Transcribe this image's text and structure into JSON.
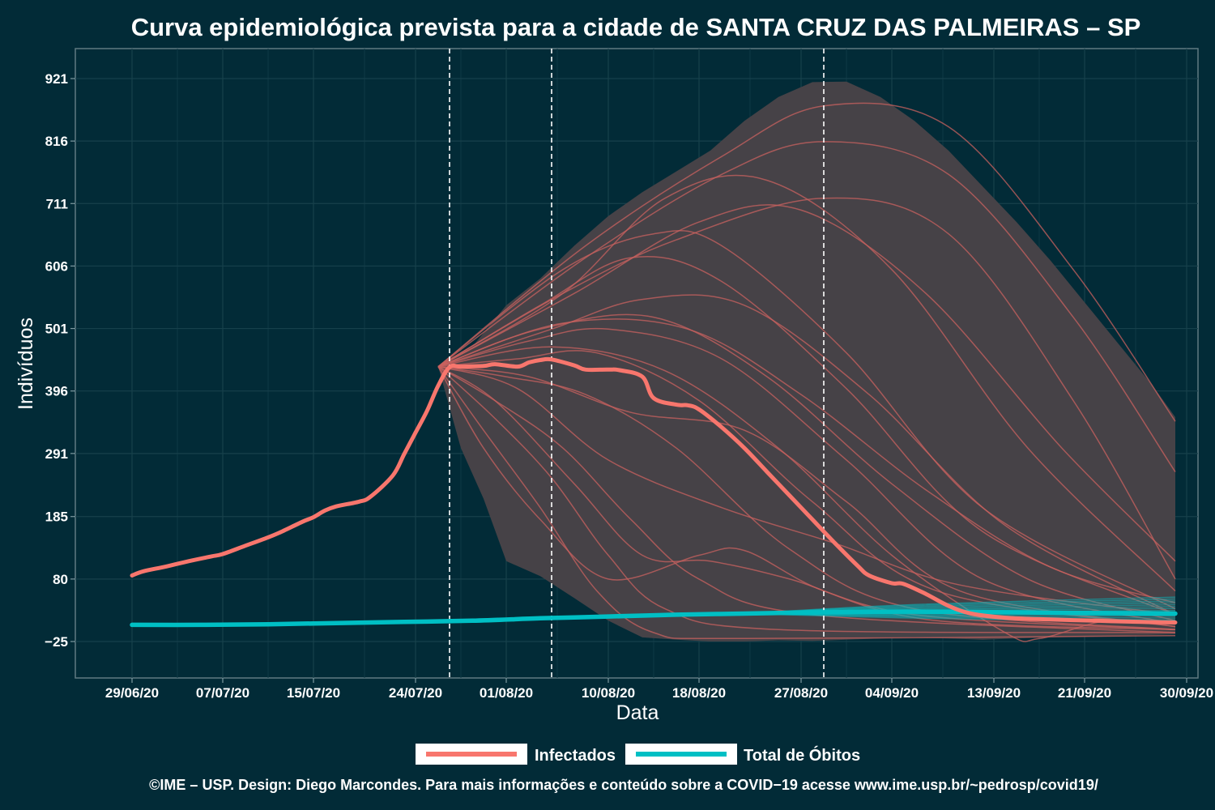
{
  "chart_data": {
    "type": "line",
    "title": "Curva epidemiológica prevista para a cidade de SANTA CRUZ DAS PALMEIRAS – SP",
    "xlabel": "Data",
    "ylabel": "Indivíduos",
    "caption": "©IME – USP. Design: Diego Marcondes. Para mais informações e conteúdo sobre a COVID−19 acesse www.ime.usp.br/~pedrosp/covid19/",
    "x_domain": [
      "2020-06-24",
      "2020-10-01"
    ],
    "ylim": [
      -25,
      921
    ],
    "x_ticks": [
      {
        "date": "2020-06-29",
        "label": "29/06/20"
      },
      {
        "date": "2020-07-07",
        "label": "07/07/20"
      },
      {
        "date": "2020-07-15",
        "label": "15/07/20"
      },
      {
        "date": "2020-07-24",
        "label": "24/07/20"
      },
      {
        "date": "2020-08-01",
        "label": "01/08/20"
      },
      {
        "date": "2020-08-10",
        "label": "10/08/20"
      },
      {
        "date": "2020-08-18",
        "label": "18/08/20"
      },
      {
        "date": "2020-08-27",
        "label": "27/08/20"
      },
      {
        "date": "2020-09-04",
        "label": "04/09/20"
      },
      {
        "date": "2020-09-13",
        "label": "13/09/20"
      },
      {
        "date": "2020-09-21",
        "label": "21/09/20"
      },
      {
        "date": "2020-09-30",
        "label": "30/09/20"
      }
    ],
    "y_ticks": [
      {
        "value": -25,
        "label": "−25"
      },
      {
        "value": 80,
        "label": "80"
      },
      {
        "value": 185,
        "label": "185"
      },
      {
        "value": 291,
        "label": "291"
      },
      {
        "value": 396,
        "label": "396"
      },
      {
        "value": 501,
        "label": "501"
      },
      {
        "value": 606,
        "label": "606"
      },
      {
        "value": 711,
        "label": "711"
      },
      {
        "value": 816,
        "label": "816"
      },
      {
        "value": 921,
        "label": "921"
      }
    ],
    "vlines": [
      "2020-07-27",
      "2020-08-05",
      "2020-08-29"
    ],
    "band": {
      "upper": [
        [
          "2020-07-26",
          437
        ],
        [
          "2020-07-29",
          470
        ],
        [
          "2020-08-01",
          540
        ],
        [
          "2020-08-04",
          585
        ],
        [
          "2020-08-07",
          640
        ],
        [
          "2020-08-10",
          690
        ],
        [
          "2020-08-13",
          730
        ],
        [
          "2020-08-16",
          765
        ],
        [
          "2020-08-19",
          800
        ],
        [
          "2020-08-22",
          850
        ],
        [
          "2020-08-25",
          890
        ],
        [
          "2020-08-28",
          915
        ],
        [
          "2020-08-31",
          916
        ],
        [
          "2020-09-03",
          890
        ],
        [
          "2020-09-06",
          850
        ],
        [
          "2020-09-09",
          800
        ],
        [
          "2020-09-12",
          740
        ],
        [
          "2020-09-15",
          680
        ],
        [
          "2020-09-18",
          615
        ],
        [
          "2020-09-21",
          545
        ],
        [
          "2020-09-24",
          475
        ],
        [
          "2020-09-27",
          405
        ],
        [
          "2020-09-29",
          352
        ]
      ],
      "lower": [
        [
          "2020-07-26",
          437
        ],
        [
          "2020-07-28",
          300
        ],
        [
          "2020-07-30",
          215
        ],
        [
          "2020-08-01",
          110
        ],
        [
          "2020-08-04",
          85
        ],
        [
          "2020-08-07",
          48
        ],
        [
          "2020-08-10",
          10
        ],
        [
          "2020-08-13",
          -18
        ],
        [
          "2020-08-16",
          -22
        ],
        [
          "2020-08-19",
          -25
        ],
        [
          "2020-08-22",
          -25
        ],
        [
          "2020-08-25",
          -23
        ],
        [
          "2020-08-28",
          -24
        ],
        [
          "2020-08-31",
          -22
        ],
        [
          "2020-09-03",
          -20
        ],
        [
          "2020-09-06",
          -18
        ],
        [
          "2020-09-09",
          -20
        ],
        [
          "2020-09-12",
          -22
        ],
        [
          "2020-09-15",
          -20
        ],
        [
          "2020-09-18",
          -18
        ],
        [
          "2020-09-21",
          -17
        ],
        [
          "2020-09-24",
          -15
        ],
        [
          "2020-09-27",
          -14
        ],
        [
          "2020-09-29",
          -13
        ]
      ]
    },
    "series": [
      {
        "name": "Infectados",
        "color": "#f8766d",
        "values": [
          [
            "2020-06-29",
            86
          ],
          [
            "2020-06-30",
            93
          ],
          [
            "2020-07-02",
            101
          ],
          [
            "2020-07-04",
            110
          ],
          [
            "2020-07-06",
            118
          ],
          [
            "2020-07-07",
            122
          ],
          [
            "2020-07-09",
            136
          ],
          [
            "2020-07-11",
            150
          ],
          [
            "2020-07-12",
            158
          ],
          [
            "2020-07-14",
            176
          ],
          [
            "2020-07-15",
            184
          ],
          [
            "2020-07-16",
            195
          ],
          [
            "2020-07-17",
            202
          ],
          [
            "2020-07-19",
            210
          ],
          [
            "2020-07-20",
            218
          ],
          [
            "2020-07-22",
            254
          ],
          [
            "2020-07-23",
            290
          ],
          [
            "2020-07-24",
            326
          ],
          [
            "2020-07-25",
            362
          ],
          [
            "2020-07-26",
            405
          ],
          [
            "2020-07-27",
            436
          ],
          [
            "2020-07-28",
            437
          ],
          [
            "2020-07-30",
            438
          ],
          [
            "2020-07-31",
            441
          ],
          [
            "2020-08-02",
            437
          ],
          [
            "2020-08-03",
            444
          ],
          [
            "2020-08-04",
            448
          ],
          [
            "2020-08-05",
            449
          ],
          [
            "2020-08-07",
            439
          ],
          [
            "2020-08-08",
            432
          ],
          [
            "2020-08-10",
            432
          ],
          [
            "2020-08-11",
            431
          ],
          [
            "2020-08-13",
            420
          ],
          [
            "2020-08-14",
            384
          ],
          [
            "2020-08-16",
            373
          ],
          [
            "2020-08-17",
            372
          ],
          [
            "2020-08-18",
            365
          ],
          [
            "2020-08-20",
            335
          ],
          [
            "2020-08-22",
            300
          ],
          [
            "2020-08-24",
            260
          ],
          [
            "2020-08-26",
            220
          ],
          [
            "2020-08-28",
            180
          ],
          [
            "2020-08-30",
            140
          ],
          [
            "2020-09-01",
            102
          ],
          [
            "2020-09-02",
            86
          ],
          [
            "2020-09-04",
            73
          ],
          [
            "2020-09-05",
            72
          ],
          [
            "2020-09-07",
            55
          ],
          [
            "2020-09-09",
            35
          ],
          [
            "2020-09-11",
            22
          ],
          [
            "2020-09-14",
            15
          ],
          [
            "2020-09-18",
            12
          ],
          [
            "2020-09-22",
            10
          ],
          [
            "2020-09-26",
            8
          ],
          [
            "2020-09-29",
            7
          ]
        ]
      },
      {
        "name": "Total de Óbitos",
        "color": "#00bfc4",
        "values": [
          [
            "2020-06-29",
            3
          ],
          [
            "2020-07-05",
            3
          ],
          [
            "2020-07-11",
            4
          ],
          [
            "2020-07-17",
            6
          ],
          [
            "2020-07-23",
            8
          ],
          [
            "2020-07-29",
            10
          ],
          [
            "2020-08-04",
            14
          ],
          [
            "2020-08-10",
            17
          ],
          [
            "2020-08-16",
            20
          ],
          [
            "2020-08-22",
            22
          ],
          [
            "2020-08-28",
            24
          ],
          [
            "2020-09-03",
            25
          ],
          [
            "2020-09-09",
            25
          ],
          [
            "2020-09-15",
            24
          ],
          [
            "2020-09-21",
            23
          ],
          [
            "2020-09-29",
            22
          ]
        ]
      }
    ],
    "scenario_paths": [
      [
        [
          "2020-07-26",
          437
        ],
        [
          "2020-08-06",
          560
        ],
        [
          "2020-08-16",
          650
        ],
        [
          "2020-08-29",
          720
        ],
        [
          "2020-09-09",
          660
        ],
        [
          "2020-09-20",
          380
        ],
        [
          "2020-09-29",
          80
        ]
      ],
      [
        [
          "2020-07-26",
          437
        ],
        [
          "2020-08-08",
          620
        ],
        [
          "2020-08-20",
          760
        ],
        [
          "2020-08-29",
          815
        ],
        [
          "2020-09-09",
          760
        ],
        [
          "2020-09-20",
          520
        ],
        [
          "2020-09-29",
          260
        ]
      ],
      [
        [
          "2020-07-26",
          437
        ],
        [
          "2020-08-08",
          640
        ],
        [
          "2020-08-20",
          790
        ],
        [
          "2020-08-29",
          875
        ],
        [
          "2020-09-09",
          840
        ],
        [
          "2020-09-20",
          600
        ],
        [
          "2020-09-29",
          345
        ]
      ],
      [
        [
          "2020-07-26",
          437
        ],
        [
          "2020-08-06",
          560
        ],
        [
          "2020-08-15",
          720
        ],
        [
          "2020-08-24",
          750
        ],
        [
          "2020-09-04",
          600
        ],
        [
          "2020-09-16",
          300
        ],
        [
          "2020-09-29",
          60
        ]
      ],
      [
        [
          "2020-07-26",
          437
        ],
        [
          "2020-08-06",
          600
        ],
        [
          "2020-08-14",
          660
        ],
        [
          "2020-08-20",
          640
        ],
        [
          "2020-08-31",
          460
        ],
        [
          "2020-09-12",
          200
        ],
        [
          "2020-09-29",
          30
        ]
      ],
      [
        [
          "2020-07-26",
          437
        ],
        [
          "2020-08-04",
          540
        ],
        [
          "2020-08-12",
          620
        ],
        [
          "2020-08-20",
          580
        ],
        [
          "2020-08-31",
          400
        ],
        [
          "2020-09-12",
          160
        ],
        [
          "2020-09-29",
          20
        ]
      ],
      [
        [
          "2020-07-26",
          437
        ],
        [
          "2020-08-05",
          500
        ],
        [
          "2020-08-13",
          550
        ],
        [
          "2020-08-22",
          540
        ],
        [
          "2020-09-02",
          390
        ],
        [
          "2020-09-14",
          170
        ],
        [
          "2020-09-29",
          20
        ]
      ],
      [
        [
          "2020-07-26",
          437
        ],
        [
          "2020-08-03",
          480
        ],
        [
          "2020-08-10",
          500
        ],
        [
          "2020-08-20",
          450
        ],
        [
          "2020-08-31",
          280
        ],
        [
          "2020-09-12",
          80
        ],
        [
          "2020-09-29",
          5
        ]
      ],
      [
        [
          "2020-07-26",
          437
        ],
        [
          "2020-08-02",
          450
        ],
        [
          "2020-08-09",
          460
        ],
        [
          "2020-08-18",
          380
        ],
        [
          "2020-08-28",
          210
        ],
        [
          "2020-09-08",
          60
        ],
        [
          "2020-09-29",
          0
        ]
      ],
      [
        [
          "2020-07-26",
          437
        ],
        [
          "2020-08-01",
          420
        ],
        [
          "2020-08-08",
          390
        ],
        [
          "2020-08-16",
          300
        ],
        [
          "2020-08-26",
          130
        ],
        [
          "2020-09-06",
          30
        ],
        [
          "2020-09-29",
          -5
        ]
      ],
      [
        [
          "2020-07-26",
          437
        ],
        [
          "2020-07-31",
          380
        ],
        [
          "2020-08-06",
          300
        ],
        [
          "2020-08-12",
          180
        ],
        [
          "2020-08-18",
          80
        ],
        [
          "2020-08-28",
          20
        ],
        [
          "2020-09-29",
          -10
        ]
      ],
      [
        [
          "2020-07-26",
          437
        ],
        [
          "2020-07-31",
          350
        ],
        [
          "2020-08-05",
          250
        ],
        [
          "2020-08-10",
          120
        ],
        [
          "2020-08-15",
          30
        ],
        [
          "2020-08-25",
          -5
        ],
        [
          "2020-09-29",
          -10
        ]
      ],
      [
        [
          "2020-07-26",
          437
        ],
        [
          "2020-07-30",
          330
        ],
        [
          "2020-08-04",
          200
        ],
        [
          "2020-08-09",
          60
        ],
        [
          "2020-08-14",
          -10
        ],
        [
          "2020-08-22",
          -20
        ],
        [
          "2020-09-29",
          -15
        ]
      ],
      [
        [
          "2020-07-26",
          437
        ],
        [
          "2020-07-30",
          300
        ],
        [
          "2020-08-04",
          180
        ],
        [
          "2020-08-10",
          80
        ],
        [
          "2020-08-18",
          120
        ],
        [
          "2020-08-22",
          128
        ],
        [
          "2020-08-29",
          60
        ],
        [
          "2020-09-08",
          10
        ],
        [
          "2020-09-29",
          -5
        ]
      ],
      [
        [
          "2020-07-26",
          437
        ],
        [
          "2020-07-31",
          380
        ],
        [
          "2020-08-07",
          240
        ],
        [
          "2020-08-13",
          120
        ],
        [
          "2020-08-19",
          110
        ],
        [
          "2020-08-26",
          80
        ],
        [
          "2020-09-06",
          20
        ],
        [
          "2020-09-29",
          -5
        ]
      ],
      [
        [
          "2020-07-26",
          437
        ],
        [
          "2020-08-03",
          420
        ],
        [
          "2020-08-12",
          360
        ],
        [
          "2020-08-22",
          330
        ],
        [
          "2020-08-31",
          210
        ],
        [
          "2020-09-10",
          60
        ],
        [
          "2020-09-29",
          0
        ]
      ],
      [
        [
          "2020-07-26",
          437
        ],
        [
          "2020-08-02",
          400
        ],
        [
          "2020-08-10",
          280
        ],
        [
          "2020-08-20",
          200
        ],
        [
          "2020-08-30",
          140
        ],
        [
          "2020-09-10",
          70
        ],
        [
          "2020-09-29",
          20
        ]
      ],
      [
        [
          "2020-07-26",
          437
        ],
        [
          "2020-08-05",
          470
        ],
        [
          "2020-08-15",
          430
        ],
        [
          "2020-08-25",
          300
        ],
        [
          "2020-09-04",
          120
        ],
        [
          "2020-09-14",
          -10
        ],
        [
          "2020-09-17",
          -20
        ],
        [
          "2020-09-23",
          10
        ],
        [
          "2020-09-29",
          5
        ]
      ],
      [
        [
          "2020-07-26",
          437
        ],
        [
          "2020-08-04",
          500
        ],
        [
          "2020-08-14",
          520
        ],
        [
          "2020-08-24",
          420
        ],
        [
          "2020-09-04",
          240
        ],
        [
          "2020-09-16",
          80
        ],
        [
          "2020-09-29",
          10
        ]
      ],
      [
        [
          "2020-07-26",
          437
        ],
        [
          "2020-08-07",
          560
        ],
        [
          "2020-08-18",
          680
        ],
        [
          "2020-08-27",
          700
        ],
        [
          "2020-09-07",
          560
        ],
        [
          "2020-09-19",
          300
        ],
        [
          "2020-09-29",
          110
        ]
      ],
      [
        [
          "2020-07-26",
          437
        ],
        [
          "2020-08-06",
          510
        ],
        [
          "2020-08-17",
          500
        ],
        [
          "2020-08-27",
          390
        ],
        [
          "2020-09-07",
          230
        ],
        [
          "2020-09-18",
          100
        ],
        [
          "2020-09-29",
          40
        ]
      ]
    ],
    "legend": {
      "placement": "bottom"
    }
  }
}
